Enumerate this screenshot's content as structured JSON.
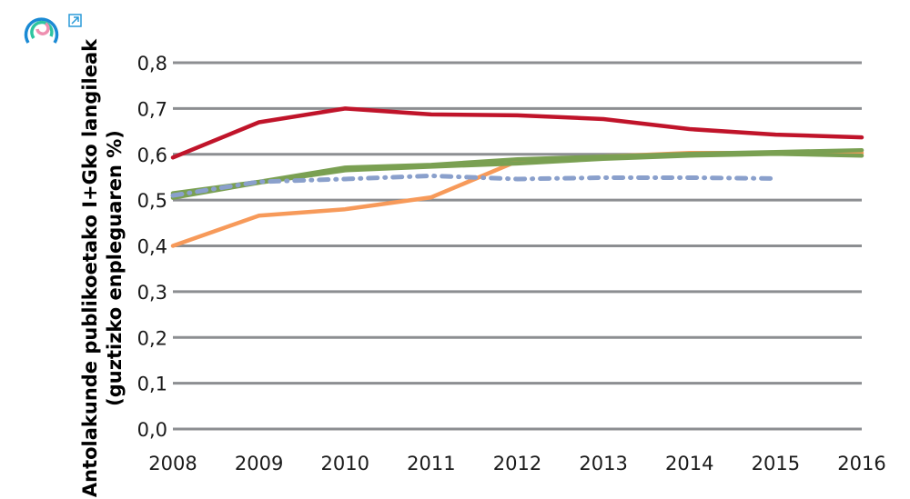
{
  "chart_data": {
    "type": "line",
    "title": "",
    "xlabel": "",
    "ylabel_lines": [
      "Antolakunde publikoetako I+Gko langileak",
      "(guztizko enpleguaren %)"
    ],
    "x": [
      2008,
      2009,
      2010,
      2011,
      2012,
      2013,
      2014,
      2015,
      2016
    ],
    "x_tick_labels": [
      "2008",
      "2009",
      "2010",
      "2011",
      "2012",
      "2013",
      "2014",
      "2015",
      "2016"
    ],
    "ylim": [
      0,
      0.8
    ],
    "y_ticks": [
      0,
      0.1,
      0.2,
      0.3,
      0.4,
      0.5,
      0.6,
      0.7,
      0.8
    ],
    "y_tick_labels": [
      "0,0",
      "0,1",
      "0,2",
      "0,3",
      "0,4",
      "0,5",
      "0,6",
      "0,7",
      "0,8"
    ],
    "grid": true,
    "legend": "none",
    "series": [
      {
        "color": "#c0142a",
        "style": "solid",
        "values": [
          0.593,
          0.67,
          0.7,
          0.687,
          0.685,
          0.677,
          0.655,
          0.643,
          0.637
        ]
      },
      {
        "color": "#f79a5a",
        "style": "solid",
        "values": [
          0.4,
          0.466,
          0.48,
          0.506,
          0.585,
          0.595,
          0.603,
          0.603,
          0.603
        ]
      },
      {
        "color": "#7aa052",
        "style": "solid",
        "values": [
          0.515,
          0.54,
          0.571,
          0.577,
          0.589,
          0.595,
          0.601,
          0.605,
          0.609
        ]
      },
      {
        "color": "#7aa052",
        "style": "solid",
        "values": [
          0.505,
          0.538,
          0.565,
          0.573,
          0.58,
          0.59,
          0.597,
          0.601,
          0.597
        ]
      },
      {
        "color": "#8aa0cc",
        "style": "dash-dot",
        "values": [
          0.51,
          0.54,
          0.546,
          0.553,
          0.546,
          0.549,
          0.549,
          0.547,
          null
        ]
      }
    ]
  },
  "icons": {
    "logo": "circular-rings-logo",
    "external": "external-link-icon"
  }
}
